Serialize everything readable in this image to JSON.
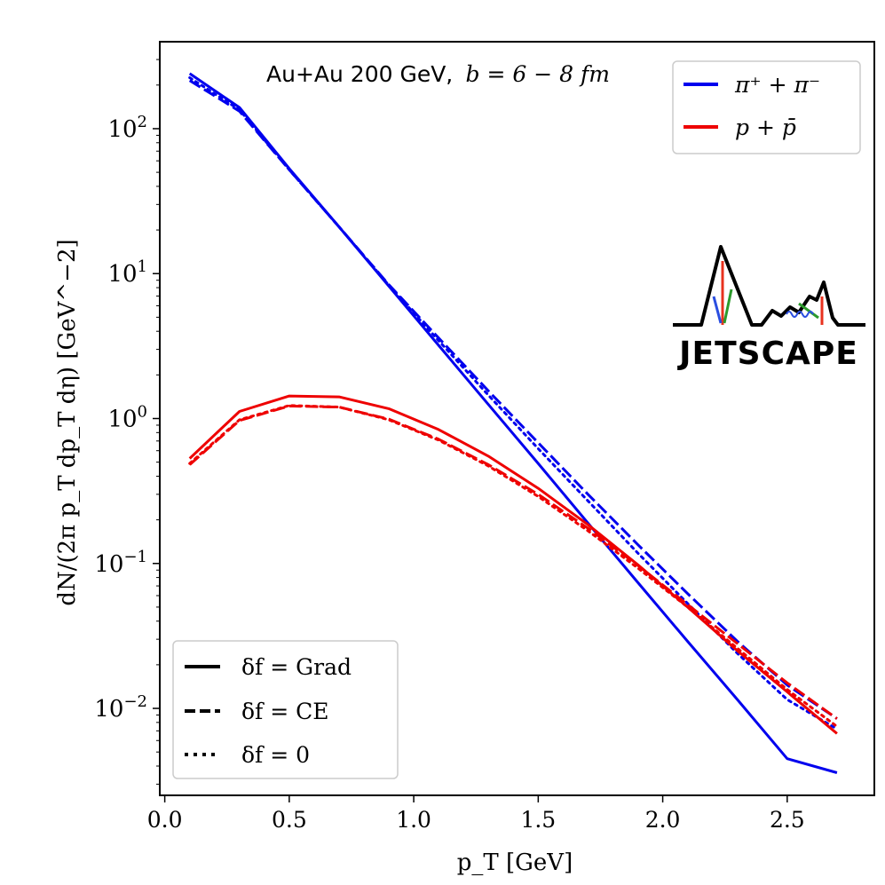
{
  "chart_data": {
    "type": "line",
    "title": "Au+Au 200 GeV, b = 6 − 8 fm",
    "title_text": "Au+Au 200 GeV,",
    "title_math": "b = 6 − 8 fm",
    "xlabel": "p_T [GeV]",
    "ylabel": "dN/(2π p_T dp_T dη) [GeV^−2]",
    "xlim": [
      -0.02,
      2.85
    ],
    "ylim_log10": [
      -2.6,
      2.6
    ],
    "yscale": "log",
    "x_ticks": [
      0.0,
      0.5,
      1.0,
      1.5,
      2.0,
      2.5
    ],
    "x_tick_labels": [
      "0.0",
      "0.5",
      "1.0",
      "1.5",
      "2.0",
      "2.5"
    ],
    "y_tick_exponents": [
      -2,
      -1,
      0,
      1,
      2
    ],
    "y_tick_labels": [
      "10",
      "10",
      "10",
      "10",
      "10"
    ],
    "y_tick_label_exps": [
      "−2",
      "−1",
      "0",
      "1",
      "2"
    ],
    "legend_species": {
      "placement": "top-right",
      "entries": [
        {
          "label": "π⁺ + π⁻",
          "color": "#0000ee"
        },
        {
          "label": "p + p̄",
          "color": "#ee0000"
        }
      ]
    },
    "legend_deltaf": {
      "placement": "bottom-left",
      "entries": [
        {
          "label": "δf = Grad",
          "style": "solid"
        },
        {
          "label": "δf = CE",
          "style": "dashed"
        },
        {
          "label": "δf = 0",
          "style": "dotted"
        }
      ]
    },
    "logo_text": "JETSCAPE",
    "x": [
      0.1,
      0.3,
      0.5,
      0.7,
      0.9,
      1.1,
      1.3,
      1.5,
      1.7,
      1.9,
      2.1,
      2.3,
      2.5,
      2.7
    ],
    "series": [
      {
        "name": "pion Grad",
        "species": "pi",
        "deltaf": "Grad",
        "color": "#0000ee",
        "style": "solid",
        "values": [
          240,
          140,
          53,
          21,
          8.2,
          3.2,
          1.25,
          0.49,
          0.19,
          0.074,
          0.029,
          0.0115,
          0.0045,
          0.0036
        ]
      },
      {
        "name": "pion CE",
        "species": "pi",
        "deltaf": "CE",
        "color": "#0000ee",
        "style": "dashed",
        "values": [
          215,
          132,
          52,
          21,
          8.4,
          3.6,
          1.55,
          0.68,
          0.3,
          0.135,
          0.062,
          0.029,
          0.0145,
          0.0085
        ]
      },
      {
        "name": "pion 0",
        "species": "pi",
        "deltaf": "0",
        "color": "#0000ee",
        "style": "dotted",
        "values": [
          225,
          135,
          52,
          21,
          8.3,
          3.45,
          1.45,
          0.62,
          0.27,
          0.118,
          0.053,
          0.024,
          0.0115,
          0.0072
        ]
      },
      {
        "name": "proton Grad",
        "species": "p",
        "deltaf": "Grad",
        "color": "#ee0000",
        "style": "solid",
        "values": [
          0.53,
          1.12,
          1.43,
          1.41,
          1.17,
          0.84,
          0.55,
          0.33,
          0.185,
          0.098,
          0.05,
          0.025,
          0.013,
          0.0067
        ]
      },
      {
        "name": "proton CE",
        "species": "p",
        "deltaf": "CE",
        "color": "#ee0000",
        "style": "dashed",
        "values": [
          0.48,
          0.97,
          1.22,
          1.2,
          0.99,
          0.72,
          0.48,
          0.3,
          0.175,
          0.097,
          0.052,
          0.028,
          0.015,
          0.0085
        ]
      },
      {
        "name": "proton 0",
        "species": "p",
        "deltaf": "0",
        "color": "#ee0000",
        "style": "dotted",
        "values": [
          0.49,
          0.98,
          1.23,
          1.2,
          0.98,
          0.71,
          0.47,
          0.29,
          0.168,
          0.093,
          0.05,
          0.026,
          0.0135,
          0.0075
        ]
      }
    ]
  }
}
